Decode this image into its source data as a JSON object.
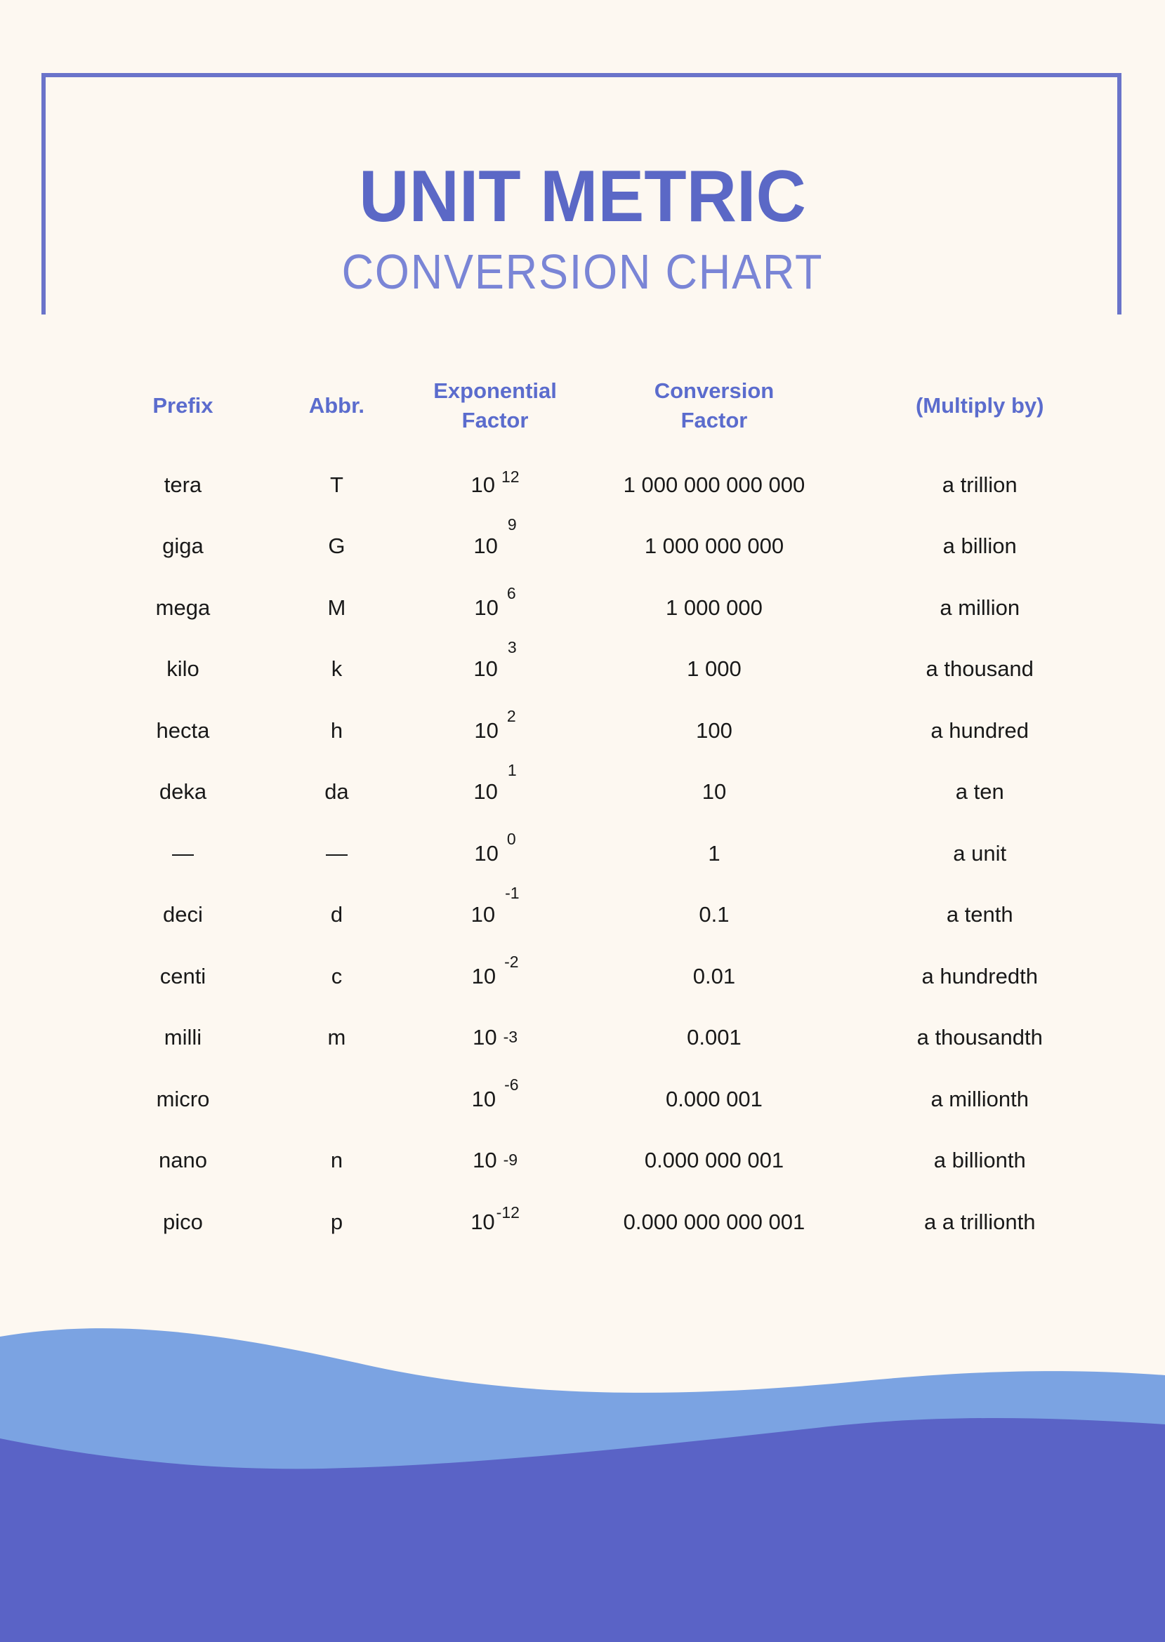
{
  "page": {
    "title": "UNIT METRIC",
    "subtitle": "CONVERSION CHART",
    "colors": {
      "bg": "#fdf8f1",
      "accent": "#5b68c6",
      "accent_light": "#7a85d6",
      "header_text": "#5b6ccd",
      "body_text": "#191919",
      "frame": "#6a74ca",
      "wave_light": "#7ba3e2",
      "wave_dark": "#5a63c6"
    }
  },
  "table": {
    "headers": [
      {
        "label": "Prefix"
      },
      {
        "label": "Abbr."
      },
      {
        "label": "Exponential\nFactor"
      },
      {
        "label": "Conversion\nFactor"
      },
      {
        "label": "(Multiply by)"
      }
    ],
    "rows": [
      {
        "prefix": "tera",
        "abbr": "T",
        "base": "10",
        "exponent": "12",
        "exp_style": "mid",
        "conversion": "1 000 000 000 000",
        "multiply": "a trillion"
      },
      {
        "prefix": "giga",
        "abbr": "G",
        "base": "10",
        "exponent": "9",
        "exp_style": "high",
        "conversion": "1 000 000 000",
        "multiply": "a billion"
      },
      {
        "prefix": "mega",
        "abbr": "M",
        "base": "10",
        "exponent": "6",
        "exp_style": "raised",
        "conversion": "1 000 000",
        "multiply": "a million"
      },
      {
        "prefix": "kilo",
        "abbr": "k",
        "base": "10",
        "exponent": "3",
        "exp_style": "high",
        "conversion": "1 000",
        "multiply": "a thousand"
      },
      {
        "prefix": "hecta",
        "abbr": "h",
        "base": "10",
        "exponent": "2",
        "exp_style": "raised",
        "conversion": "100",
        "multiply": "a hundred"
      },
      {
        "prefix": "deka",
        "abbr": "da",
        "base": "10",
        "exponent": "1",
        "exp_style": "high",
        "conversion": "10",
        "multiply": "a ten"
      },
      {
        "prefix": "—",
        "abbr": "—",
        "base": "10",
        "exponent": "0",
        "exp_style": "raised",
        "conversion": "1",
        "multiply": "a unit"
      },
      {
        "prefix": "deci",
        "abbr": "d",
        "base": "10",
        "exponent": "-1",
        "exp_style": "high",
        "conversion": "0.1",
        "multiply": "a tenth"
      },
      {
        "prefix": "centi",
        "abbr": "c",
        "base": "10",
        "exponent": "-2",
        "exp_style": "raised",
        "conversion": "0.01",
        "multiply": "a hundredth"
      },
      {
        "prefix": "milli",
        "abbr": "m",
        "base": "10",
        "exponent": "-3",
        "exp_style": "inline",
        "conversion": "0.001",
        "multiply": "a thousandth"
      },
      {
        "prefix": "micro",
        "abbr": "",
        "base": "10",
        "exponent": "-6",
        "exp_style": "raised",
        "conversion": "0.000 001",
        "multiply": "a millionth"
      },
      {
        "prefix": "nano",
        "abbr": "n",
        "base": "10",
        "exponent": "-9",
        "exp_style": "inline",
        "conversion": "0.000 000 001",
        "multiply": "a billionth"
      },
      {
        "prefix": "pico",
        "abbr": "p",
        "base": "10",
        "exponent": "-12",
        "exp_style": "tight",
        "conversion": "0.000 000 000 001",
        "multiply": "a a trillionth"
      }
    ]
  }
}
